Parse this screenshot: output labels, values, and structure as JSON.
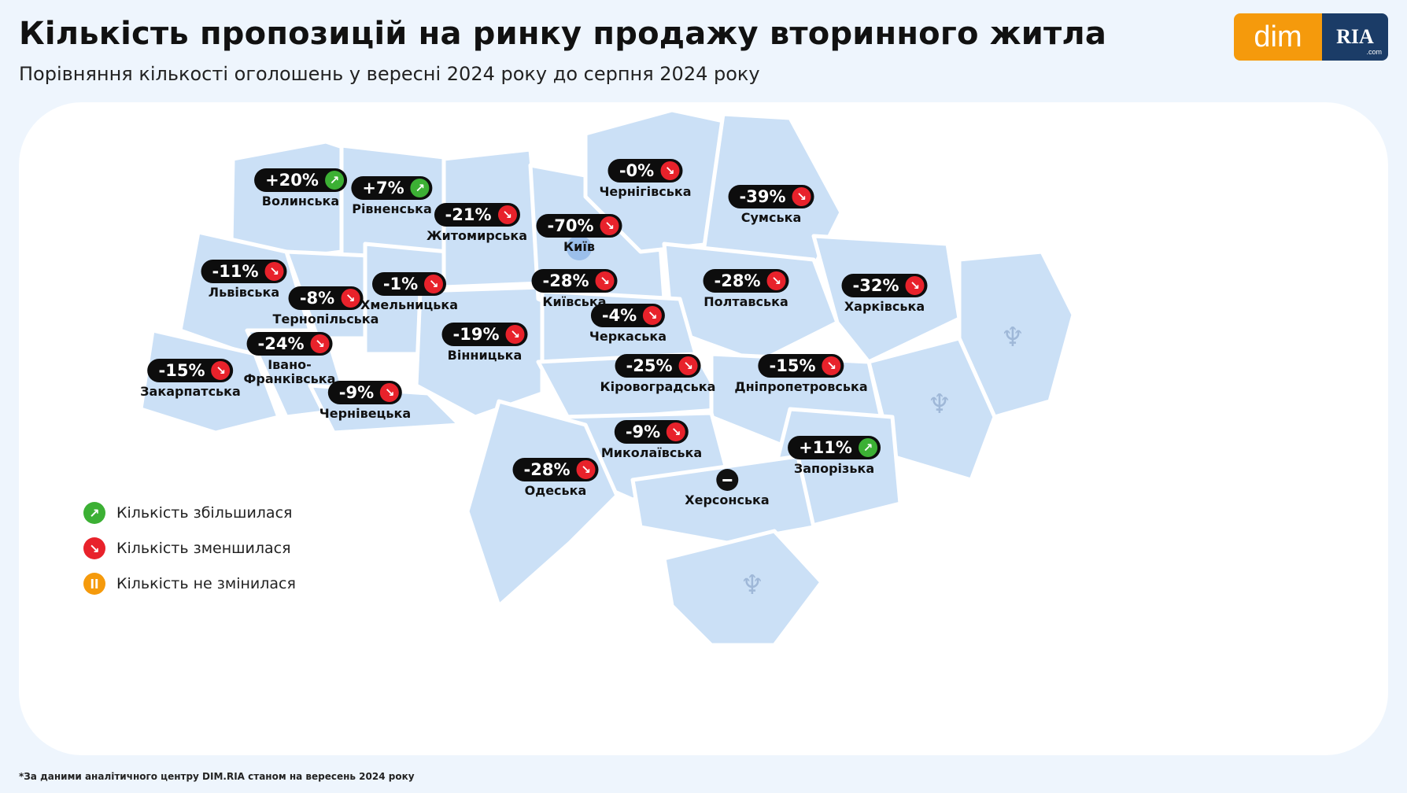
{
  "header": {
    "title": "Кількість пропозицій на ринку продажу вторинного житла",
    "subtitle": "Порівняння кількості оголошень у вересні 2024 року до серпня 2024 року"
  },
  "logo": {
    "left": "dim",
    "right": "RIA",
    "right_small": ".com"
  },
  "colors": {
    "up": "#3cb034",
    "down": "#e8222b",
    "same": "#f59a0c",
    "map": "#cbe0f6"
  },
  "regions": [
    {
      "name": "Волинська",
      "value": "+20%",
      "trend": "up"
    },
    {
      "name": "Рівненська",
      "value": "+7%",
      "trend": "up"
    },
    {
      "name": "Житомирська",
      "value": "-21%",
      "trend": "down"
    },
    {
      "name": "Чернігівська",
      "value": "-0%",
      "trend": "down"
    },
    {
      "name": "Сумська",
      "value": "-39%",
      "trend": "down"
    },
    {
      "name": "Київ",
      "value": "-70%",
      "trend": "down"
    },
    {
      "name": "Львівська",
      "value": "-11%",
      "trend": "down"
    },
    {
      "name": "Хмельницька",
      "value": "-1%",
      "trend": "down"
    },
    {
      "name": "Тернопільська",
      "value": "-8%",
      "trend": "down"
    },
    {
      "name": "Київська",
      "value": "-28%",
      "trend": "down"
    },
    {
      "name": "Полтавська",
      "value": "-28%",
      "trend": "down"
    },
    {
      "name": "Харківська",
      "value": "-32%",
      "trend": "down"
    },
    {
      "name": "Черкаська",
      "value": "-4%",
      "trend": "down"
    },
    {
      "name": "Вінницька",
      "value": "-19%",
      "trend": "down"
    },
    {
      "name": "Івано-\nФранківська",
      "value": "-24%",
      "trend": "down"
    },
    {
      "name": "Закарпатська",
      "value": "-15%",
      "trend": "down"
    },
    {
      "name": "Кіровоградська",
      "value": "-25%",
      "trend": "down"
    },
    {
      "name": "Дніпропетровська",
      "value": "-15%",
      "trend": "down"
    },
    {
      "name": "Чернівецька",
      "value": "-9%",
      "trend": "down"
    },
    {
      "name": "Миколаївська",
      "value": "-9%",
      "trend": "down"
    },
    {
      "name": "Запорізька",
      "value": "+11%",
      "trend": "up"
    },
    {
      "name": "Одеська",
      "value": "-28%",
      "trend": "down"
    },
    {
      "name": "Херсонська",
      "value": "",
      "trend": "none"
    }
  ],
  "legend": [
    {
      "label": "Кількість збільшилася",
      "trend": "up"
    },
    {
      "label": "Кількість зменшилася",
      "trend": "down"
    },
    {
      "label": "Кількість не змінилася",
      "trend": "same"
    }
  ],
  "footnote": "*За даними аналітичного центру DIM.RIA станом на вересень 2024 року"
}
